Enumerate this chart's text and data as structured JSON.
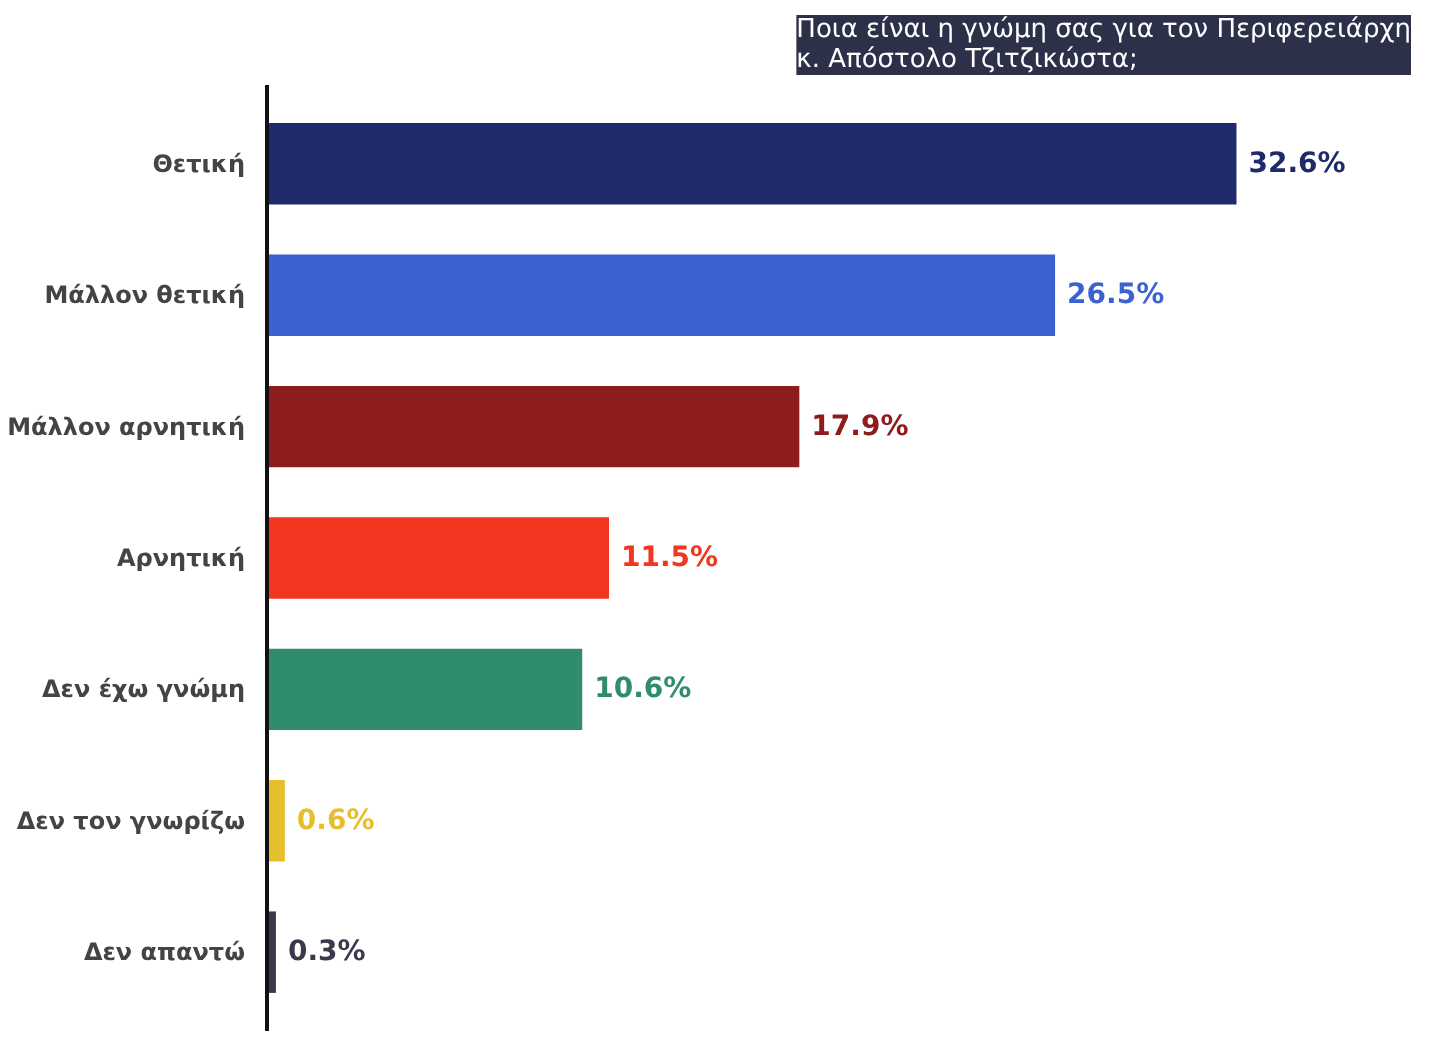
{
  "chart_data": {
    "type": "bar",
    "orientation": "horizontal",
    "title": "Ποια είναι η γνώμη σας για τον Περιφερειάρχη\nκ. Απόστολο Τζιτζικώστα;",
    "categories": [
      "Θετική",
      "Μάλλον θετική",
      "Μάλλον αρνητική",
      "Αρνητική",
      "Δεν έχω γνώμη",
      "Δεν τον γνωρίζω",
      "Δεν απαντώ"
    ],
    "values": [
      32.6,
      26.5,
      17.9,
      11.5,
      10.6,
      0.6,
      0.3
    ],
    "value_labels": [
      "32.6%",
      "26.5%",
      "17.9%",
      "11.5%",
      "10.6%",
      "0.6%",
      "0.3%"
    ],
    "colors": [
      "#1f2a6b",
      "#3b62d0",
      "#8e1c1c",
      "#f2361f",
      "#2f8c6f",
      "#e6bf2e",
      "#3a3a4c"
    ],
    "grid": false
  }
}
